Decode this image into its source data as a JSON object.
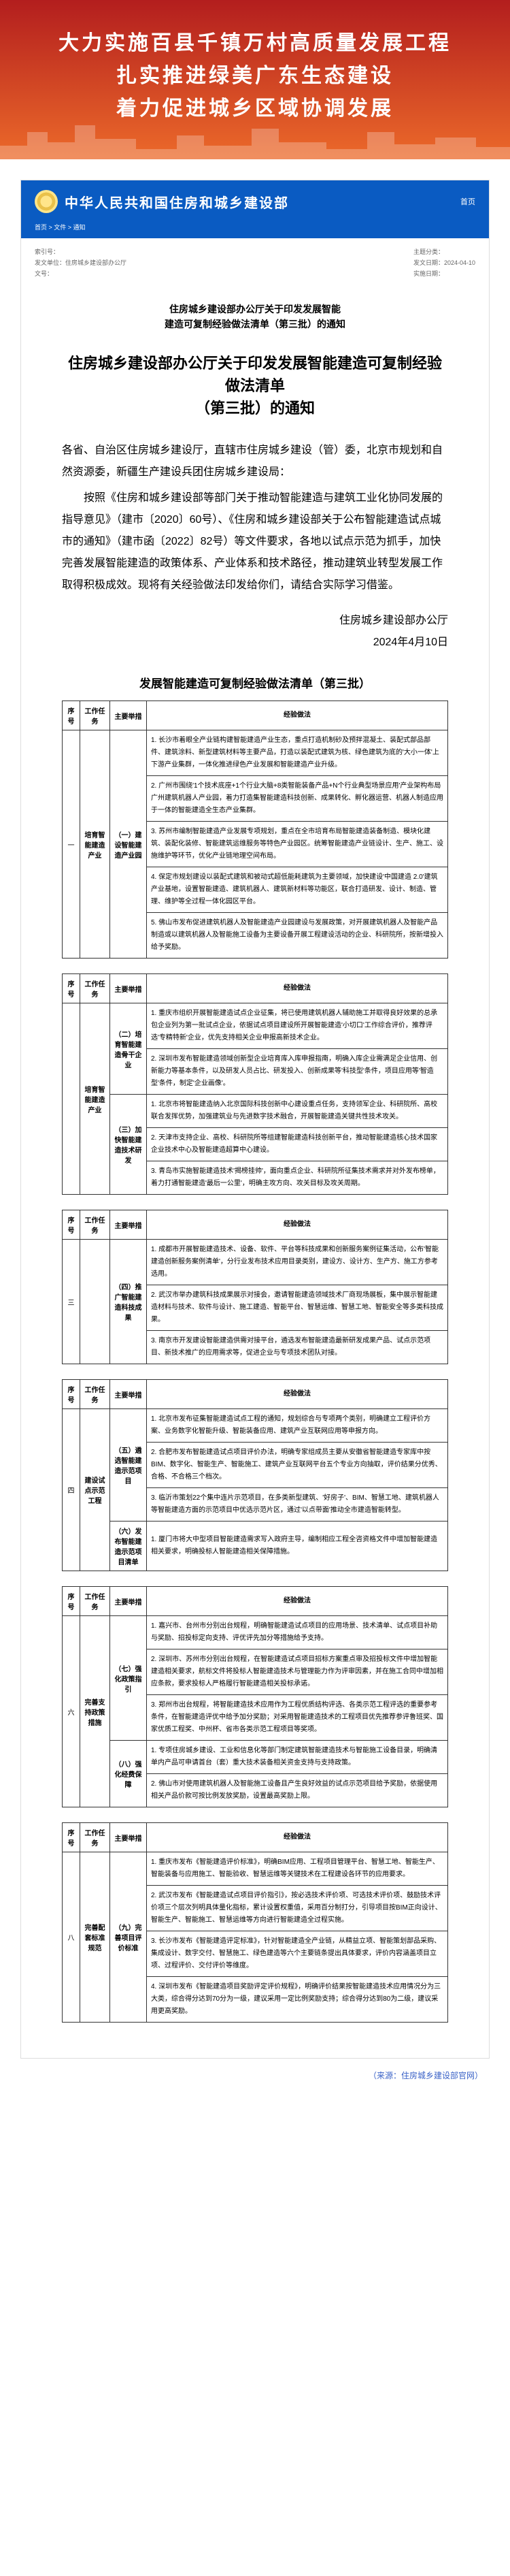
{
  "banner": {
    "line1": "大力实施百县千镇万村高质量发展工程",
    "line2": "扎实推进绿美广东生态建设",
    "line3": "着力促进城乡区域协调发展"
  },
  "site": {
    "title": "中华人民共和国住房和城乡建设部",
    "nav": [
      "首页"
    ],
    "breadcrumb": "首页 > 文件 > 通知",
    "meta_left": [
      "索引号：",
      "发文单位：住房城乡建设部办公厅",
      "文号："
    ],
    "meta_right": [
      "主题分类：",
      "发文日期：2024-04-10",
      "实施日期："
    ],
    "doc_heading_l1": "住房城乡建设部办公厅关于印发发展智能",
    "doc_heading_l2": "建造可复制经验做法清单（第三批）的通知"
  },
  "doc": {
    "title_l1": "住房城乡建设部办公厅关于印发发展智能建造可复制经验做法清单",
    "title_l2": "（第三批）的通知",
    "addressee": "各省、自治区住房城乡建设厅，直辖市住房城乡建设（管）委，北京市规划和自然资源委，新疆生产建设兵团住房城乡建设局：",
    "para1": "按照《住房和城乡建设部等部门关于推动智能建造与建筑工业化协同发展的指导意见》（建市〔2020〕60号）、《住房和城乡建设部关于公布智能建造试点城市的通知》（建市函〔2022〕82号）等文件要求，各地以试点示范为抓手，加快完善发展智能建造的政策体系、产业体系和技术路径，推动建筑业转型发展工作取得积极成效。现将有关经验做法印发给你们，请结合实际学习借鉴。",
    "sign_org": "住房城乡建设部办公厅",
    "sign_date": "2024年4月10日",
    "attach_title": "发展智能建造可复制经验做法清单（第三批）"
  },
  "tables": {
    "headers": [
      "序号",
      "工作任务",
      "主要举措",
      "经验做法"
    ],
    "blocks": [
      {
        "rows": [
          {
            "seq": "一",
            "task_label": "培育智能建造产业",
            "item_label": "（一）建设智能建造产业园",
            "methods": [
              "1. 长沙市着眼全产业链构建智能建造产业生态，重点打造机制砂及预拌混凝土、装配式部品部件、建筑涂料、新型建筑材料等主要产品，打造以装配式建筑为核、绿色建筑为底的'大小一体'上下游产业集群，一体化推进绿色产业发展和智能建造产业升级。",
              "2. 广州市围绕'1个技术底座+1个行业大脑+8类智能装备产品+N个行业典型场景应用'产业架构布局广州建筑机器人产业园，着力打造集智能建造科技创新、成果转化、孵化器运营、机器人制造应用于一体的智能建造全生态产业集群。",
              "3. 苏州市编制智能建造产业发展专项规划，重点在全市培育布局智能建造装备制造、模块化建筑、装配化装修、智能建筑运维服务等特色产业园区。统筹智能建造产业链设计、生产、施工、设施维护等环节，优化产业链地理空间布局。",
              "4. 保定市规划建设以装配式建筑和被动式超低能耗建筑为主要领域，加快建设'中国建造 2.0'建筑产业基地，设置智能建造、建筑机器人、建筑新材料等功能区，联合打造研发、设计、制造、管理、维护等全过程一体化园区平台。",
              "5. 佛山市发布促进建筑机器人及智能建造产业园建设与发展政策，对开展建筑机器人及智能产品制造或以建筑机器人及智能施工设备为主要设备开展工程建设活动的企业、科研院所，按新增投入给予奖励。"
            ]
          }
        ]
      },
      {
        "rows": [
          {
            "seq": "",
            "task_label": "培育智能建造产业",
            "item_label": "（二）培育智能建造骨干企业",
            "methods": [
              "1. 重庆市组织开展智能建造试点企业征集，将已使用建筑机器人辅助施工并取得良好效果的总承包企业列为第一批试点企业，依据试点项目建设所开展智能建造'小切口'工作综合评价，推荐评选'专精特新'企业，优先支持相关企业申报高新技术企业。",
              "2. 深圳市发布智能建造领域创新型企业培育库入库申报指南，明确入库企业需满足企业信用、创新能力等基本条件，以及研发人员占比、研发投入、创新成果等'科技型'条件，项目应用等'智造型'条件，制定'企业画像'。"
            ]
          },
          {
            "seq": "二",
            "task_label": "",
            "item_label": "（三）加快智能建造技术研发",
            "methods": [
              "1. 北京市将智能建造纳入北京国际科技创新中心建设重点任务，支持领军企业、科研院所、高校联合发挥优势，加强建筑业与先进数字技术融合，开展智能建造关键共性技术攻关。",
              "2. 天津市支持企业、高校、科研院所等组建智能建造科技创新平台，推动智能建造核心技术国家企业技术中心及智能建造超算中心建设。",
              "3. 青岛市实施智能建造技术'揭榜挂帅'，面向重点企业、科研院所征集技术需求并对外发布榜单，着力打通智能建造'最后一公里'，明确主攻方向、攻关目标及攻关周期。"
            ]
          }
        ]
      },
      {
        "rows": [
          {
            "seq": "三",
            "task_label": "",
            "item_label": "（四）推广智能建造科技成果",
            "methods": [
              "1. 成都市开展智能建造技术、设备、软件、平台等科技成果和创新服务案例征集活动，公布'智能建造创新服务案例清单'，分行业发布技术应用目录类别，建设方、设计方、生产方、施工方参考选用。",
              "2. 武汉市举办建筑科技成果展示对接会，邀请智能建造领域技术厂商现场展板，集中展示智能建造材料与技术、软件与设计、施工建造、智能平台、智慧运维、智慧工地、智能安全等多类科技成果。",
              "3. 南京市开发建设智能建造供需对接平台，遴选发布智能建造最新研发成果产品、试点示范项目、新技术推广的应用需求等，促进企业与专项技术团队对接。"
            ]
          }
        ]
      },
      {
        "rows": [
          {
            "seq": "四",
            "task_label": "建设试点示范工程",
            "item_label": "（五）遴选智能建造示范项目",
            "methods": [
              "1. 北京市发布征集智能建造试点工程的通知，规划综合与专项两个类别，明确建立工程评价方案、业务数字化智能升级、智能装备应用、建筑产业互联网应用等申报方向。",
              "2. 合肥市发布智能建造试点项目评价办法，明确专家组成员主要从安徽省智能建造专家库中按BIM、数字化、智能生产、智能施工、建筑产业互联网平台五个专业方向抽取，评价结果分优秀、合格、不合格三个档次。",
              "3. 临沂市策划22个集中连片示范项目，在多类新型建筑、'好房子'、BIM、智慧工地、建筑机器人等智能建造方面的示范项目中优选示范片区，通过'以点带面'推动全市建造智能转型。"
            ]
          },
          {
            "seq": "五",
            "task_label": "",
            "item_label": "（六）发布智能建造示范项目清单",
            "methods": [
              "1. 厦门市将大中型项目智能建造需求写入政府主导，编制相应工程全咨资格文件中增加智能建造相关要求，明确投标人智能建造相关保障措施。"
            ]
          }
        ]
      },
      {
        "rows": [
          {
            "seq": "六",
            "task_label": "完善支持政策措施",
            "item_label": "（七）强化政策指引",
            "methods": [
              "1. 嘉兴市、台州市分别出台规程，明确智能建造试点项目的应用场景、技术清单、试点项目补助与奖励、招投标定向支持、评优评先加分等措施给予支持。",
              "2. 深圳市、苏州市分别出台规程，在智能建造试点项目招标方案重点审及招投标文件中增加智能建造相关要求，航标文件将投标人智能建造技术与管理能力作为评审因素，并在施工合同中增加相应条款，要求投标人严格履行智能建造相关投标承诺。",
              "3. 郑州市出台规程，将智能建造技术应用作为工程优质结构评选、各类示范工程评选的重要参考条件，在智能建造评优中给予加分奖励；对采用智能建造技术的工程项目优先推荐参评鲁班奖、国家优质工程奖、中州杯、省市各类示范工程项目等奖项。"
            ]
          },
          {
            "seq": "七",
            "task_label": "",
            "item_label": "（八）强化经费保障",
            "methods": [
              "1. 专项住房城乡建设、工业和信息化等部门制定建筑智能建造技术与智能施工设备目录，明确清单内产品可申请首台（套）重大技术装备相关资金支持与支持政策。",
              "2. 佛山市对使用建筑机器人及智能施工设备且产生良好效益的试点示范项目给予奖励，依据使用相关产品价款可按比例发放奖励，设置最高奖励上限。"
            ]
          }
        ]
      },
      {
        "rows": [
          {
            "seq": "八",
            "task_label": "完善配套标准规范",
            "item_label": "（九）完善项目评价标准",
            "methods": [
              "1. 重庆市发布《智能建造评价标准》，明确BIM应用、工程项目管理平台、智慧工地、智能生产、智能装备与应用施工、智能验收、智慧运维等关键技术在工程建设各环节的应用要求。",
              "2. 武汉市发布《智能建造试点项目评价指引》，按必选技术评价项、可选技术评价项、鼓励技术评价项三个层次列明具体量化指标，累计设置权重值，采用百分制打分，引导项目按BIM正向设计、智能生产、智能施工、智慧运维等方向进行智能建造全过程实施。",
              "3. 长沙市发布《智能建造评定标准》，针对智能建造全产业链，从精益立项、智能策划部品采购、集成设计、数字交付、智慧施工、绿色建造等六个主要链条提出具体要求，评价内容涵盖项目立项、过程评价、交付评价等维度。",
              "4. 深圳市发布《智能建造项目奖励评定评价规程》，明确评价结果按智能建造技术应用情况分为三大类，综合得分达到70分为一级，建议采用一定比例奖励支持；综合得分达到80为二级，建议采用更高奖励。"
            ]
          }
        ]
      }
    ]
  },
  "source": "（来源：住房城乡建设部官网）"
}
